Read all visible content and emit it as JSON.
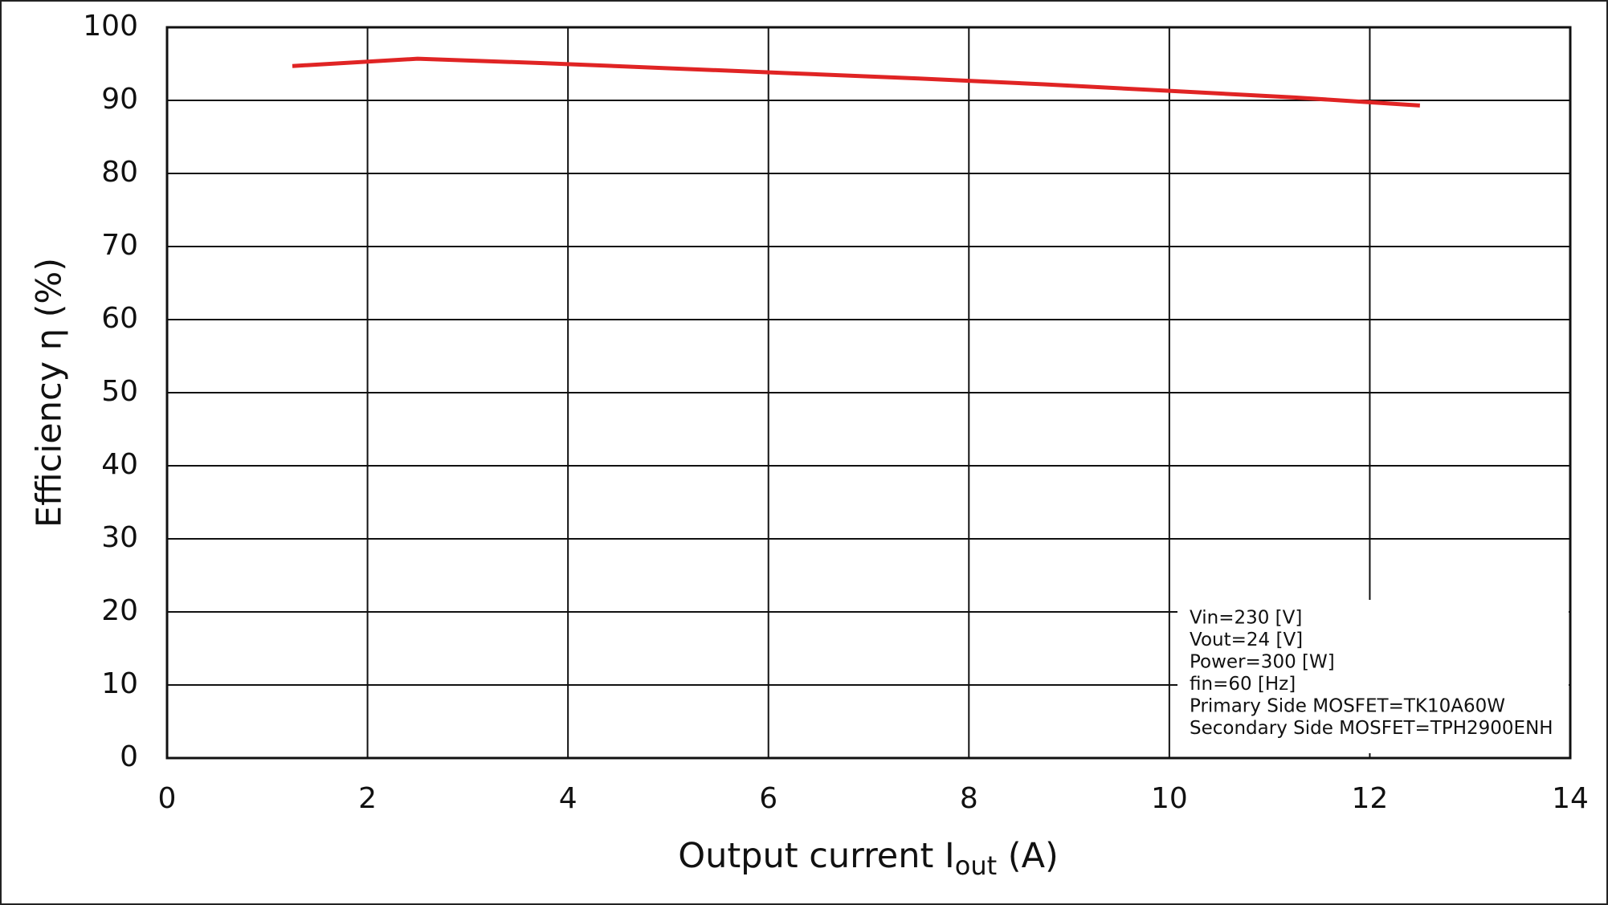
{
  "chart_data": {
    "type": "line",
    "ylabel": "Efficiency  η (%)",
    "xlabel_parts": [
      "Output current  I",
      "out",
      " (A)"
    ],
    "x": [
      1.25,
      2.5,
      3.75,
      5,
      6.25,
      7.5,
      8.75,
      10,
      11.25,
      12.5
    ],
    "series": [
      {
        "color": "#e02424",
        "values": [
          94.7,
          95.7,
          95.1,
          94.4,
          93.7,
          93.0,
          92.2,
          91.3,
          90.4,
          89.3
        ]
      }
    ],
    "xlim": [
      0,
      14
    ],
    "xticks": [
      0,
      2,
      4,
      6,
      8,
      10,
      12,
      14
    ],
    "ylim": [
      0,
      100
    ],
    "yticks": [
      0,
      10,
      20,
      30,
      40,
      50,
      60,
      70,
      80,
      90,
      100
    ],
    "grid": true,
    "annotations": [
      "Vin=230 [V]",
      "Vout=24 [V]",
      "Power=300 [W]",
      "fin=60 [Hz]",
      "Primary Side MOSFET=TK10A60W",
      "Secondary Side MOSFET=TPH2900ENH"
    ]
  }
}
